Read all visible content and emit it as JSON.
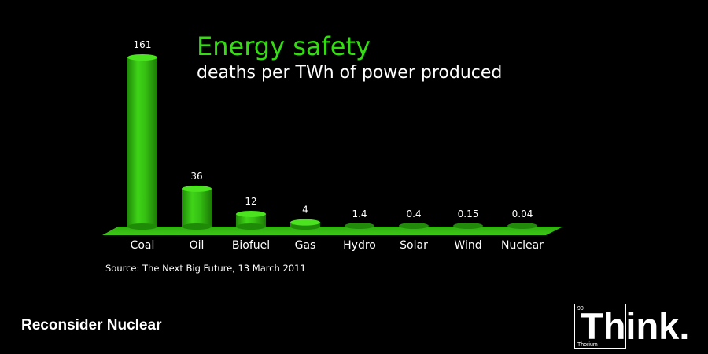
{
  "chart_data": {
    "type": "bar",
    "title": "Energy safety",
    "subtitle": "deaths per TWh of power produced",
    "categories": [
      "Coal",
      "Oil",
      "Biofuel",
      "Gas",
      "Hydro",
      "Solar",
      "Wind",
      "Nuclear"
    ],
    "values": [
      161,
      36,
      12,
      4,
      1.4,
      0.4,
      0.15,
      0.04
    ],
    "value_labels": [
      "161",
      "36",
      "12",
      "4",
      "1.4",
      "0.4",
      "0.15",
      "0.04"
    ],
    "xlabel": "",
    "ylabel": "",
    "grid": false,
    "bar_color": "#33cc11",
    "source": "Source: The Next Big Future, 13 March 2011"
  },
  "caption": "Reconsider Nuclear",
  "logo": {
    "element_number": "90",
    "element_name": "Thorium",
    "word": "Think."
  },
  "colors": {
    "background": "#000000",
    "accent": "#33dd11",
    "text": "#ffffff"
  }
}
